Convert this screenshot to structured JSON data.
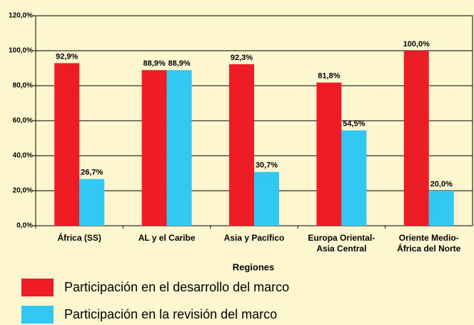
{
  "chart_data": {
    "type": "bar",
    "categories": [
      "África (SS)",
      "AL y el Caribe",
      "Asia y Pacífico",
      "Europa Oriental-Asia Central",
      "Oriente Medio-África del Norte"
    ],
    "series": [
      {
        "name": "Participación en el desarrollo del marco",
        "color": "#ee1c25",
        "values": [
          92.9,
          88.9,
          92.3,
          81.8,
          100.0
        ],
        "value_labels": [
          "92,9%",
          "88,9%",
          "92,3%",
          "81,8%",
          "100,0%"
        ]
      },
      {
        "name": "Participación en la revisión del marco",
        "color": "#33c8f4",
        "values": [
          26.7,
          88.9,
          30.7,
          54.5,
          20.0
        ],
        "value_labels": [
          "26,7%",
          "88,9%",
          "30,7%",
          "54,5%",
          "20,0%"
        ]
      }
    ],
    "xlabel": "Regiones",
    "ylim": [
      0,
      120
    ],
    "yticks": [
      {
        "value": 0,
        "label": "0,0%"
      },
      {
        "value": 20,
        "label": "20,0%"
      },
      {
        "value": 40,
        "label": "40,0%"
      },
      {
        "value": 60,
        "label": "60,0%"
      },
      {
        "value": 80,
        "label": "80,0%"
      },
      {
        "value": 100,
        "label": "100,0%"
      },
      {
        "value": 120,
        "label": "120,0%"
      }
    ],
    "grid": true
  }
}
